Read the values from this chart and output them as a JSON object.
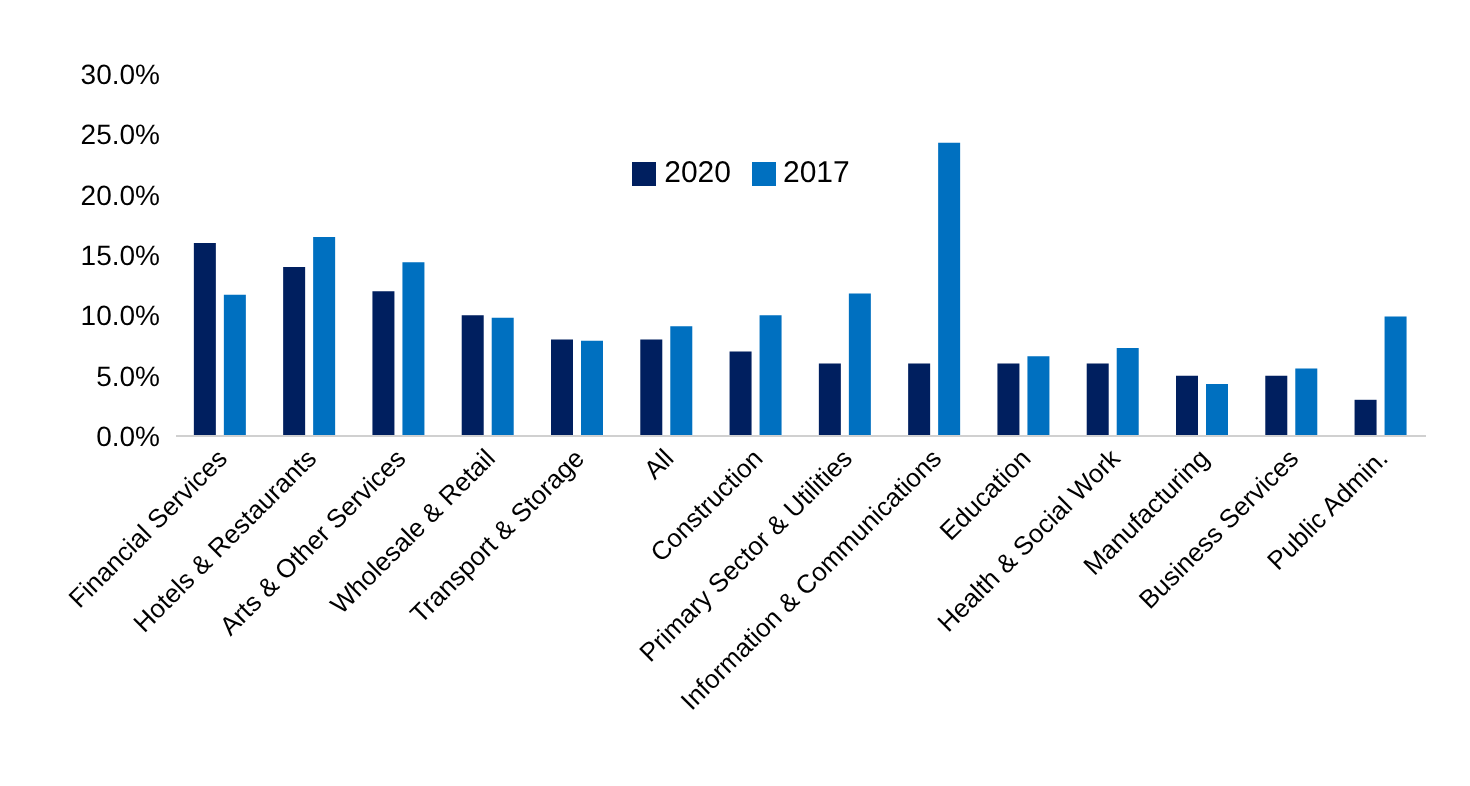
{
  "chart_data": {
    "type": "bar",
    "categories": [
      "Financial Services",
      "Hotels & Restaurants",
      "Arts & Other Services",
      "Wholesale & Retail",
      "Transport & Storage",
      "All",
      "Construction",
      "Primary Sector & Utilities",
      "Information & Communications",
      "Education",
      "Health & Social Work",
      "Manufacturing",
      "Business Services",
      "Public Admin."
    ],
    "series": [
      {
        "name": "2020",
        "color": "#001f5f",
        "values": [
          16,
          14,
          12,
          10,
          8,
          8,
          7,
          6,
          6,
          6,
          6,
          5,
          5,
          3
        ]
      },
      {
        "name": "2017",
        "color": "#0070c0",
        "values": [
          11.7,
          16.5,
          14.4,
          9.8,
          7.9,
          9.1,
          10.0,
          11.8,
          24.3,
          6.6,
          7.3,
          4.3,
          5.6,
          9.9
        ]
      }
    ],
    "ylim": [
      0,
      30
    ],
    "yticks": [
      {
        "value": 0,
        "label": "0.0%"
      },
      {
        "value": 5,
        "label": "5.0%"
      },
      {
        "value": 10,
        "label": "10.0%"
      },
      {
        "value": 15,
        "label": "15.0%"
      },
      {
        "value": 20,
        "label": "20.0%"
      },
      {
        "value": 25,
        "label": "25.0%"
      },
      {
        "value": 30,
        "label": "30.0%"
      }
    ],
    "grid": false,
    "legend": "top"
  }
}
